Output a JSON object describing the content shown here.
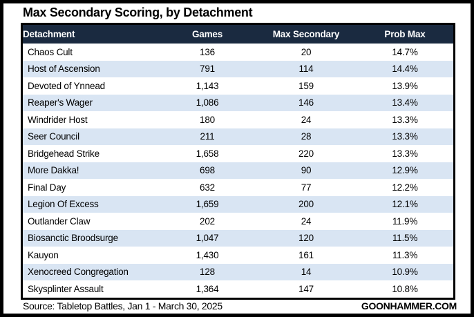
{
  "title": "Max Secondary Scoring, by Detachment",
  "footer": {
    "source": "Source: Tabletop Battles, Jan 1 - March 30, 2025",
    "site": "GOONHAMMER.COM"
  },
  "colors": {
    "header_bg": "#1a2a40",
    "header_text": "#ffffff",
    "row_stripe": "#d9e5f3",
    "row_plain": "#ffffff",
    "border": "#000000"
  },
  "chart_data": {
    "type": "table",
    "title": "Max Secondary Scoring, by Detachment",
    "columns": [
      "Detachment",
      "Games",
      "Max Secondary",
      "Prob Max"
    ],
    "rows": [
      [
        "Chaos Cult",
        "136",
        "20",
        "14.7%"
      ],
      [
        "Host of Ascension",
        "791",
        "114",
        "14.4%"
      ],
      [
        "Devoted of Ynnead",
        "1,143",
        "159",
        "13.9%"
      ],
      [
        "Reaper's Wager",
        "1,086",
        "146",
        "13.4%"
      ],
      [
        "Windrider Host",
        "180",
        "24",
        "13.3%"
      ],
      [
        "Seer Council",
        "211",
        "28",
        "13.3%"
      ],
      [
        "Bridgehead Strike",
        "1,658",
        "220",
        "13.3%"
      ],
      [
        "More Dakka!",
        "698",
        "90",
        "12.9%"
      ],
      [
        "Final Day",
        "632",
        "77",
        "12.2%"
      ],
      [
        "Legion Of Excess",
        "1,659",
        "200",
        "12.1%"
      ],
      [
        "Outlander Claw",
        "202",
        "24",
        "11.9%"
      ],
      [
        "Biosanctic Broodsurge",
        "1,047",
        "120",
        "11.5%"
      ],
      [
        "Kauyon",
        "1,430",
        "161",
        "11.3%"
      ],
      [
        "Xenocreed Congregation",
        "128",
        "14",
        "10.9%"
      ],
      [
        "Skysplinter Assault",
        "1,364",
        "147",
        "10.8%"
      ]
    ],
    "layout": {
      "striped": true,
      "stripe_start_row": 2,
      "first_column_align": "left",
      "other_columns_align": "center"
    }
  }
}
